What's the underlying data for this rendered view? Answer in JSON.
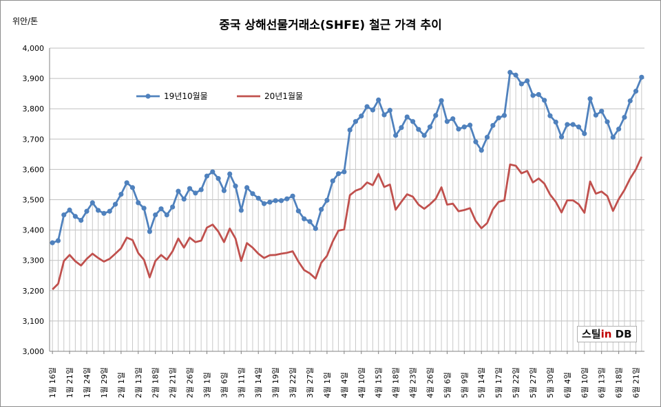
{
  "unit_label": "위안/톤",
  "logo": {
    "main": "스틸",
    "accent": "in",
    "suffix": " DB"
  },
  "colors": {
    "series1": "#4f81bd",
    "series2": "#c0504d",
    "grid": "#bfbfbf",
    "drop": "#c8c8c8"
  },
  "chart_data": {
    "type": "line",
    "title": "중국 상해선물거래소(SHFE) 철근 가격 추이",
    "ylabel": "위안/톤",
    "ylim": [
      3000,
      4000
    ],
    "yticks": [
      3000,
      3100,
      3200,
      3300,
      3400,
      3500,
      3600,
      3700,
      3800,
      3900,
      4000
    ],
    "ytick_labels": [
      "3,000",
      "3,100",
      "3,200",
      "3,300",
      "3,400",
      "3,500",
      "3,600",
      "3,700",
      "3,800",
      "3,900",
      "4,000"
    ],
    "grid": "horizontal",
    "legend": "top-left",
    "x_labels": [
      "1월 16일",
      "1월 21일",
      "1월 24일",
      "1월 29일",
      "2월 1일",
      "2월 13일",
      "2월 18일",
      "2월 21일",
      "2월 26일",
      "3월 1일",
      "3월 6일",
      "3월 11일",
      "3월 14일",
      "3월 19일",
      "3월 22일",
      "3월 27일",
      "4월 1일",
      "4월 4일",
      "4월 10일",
      "4월 15일",
      "4월 18일",
      "4월 23일",
      "4월 26일",
      "5월 6일",
      "5월 9일",
      "5월 14일",
      "5월 17일",
      "5월 22일",
      "5월 27일",
      "5월 30일",
      "6월 4일",
      "6월 10일",
      "6월 13일",
      "6월 18일",
      "6월 21일"
    ],
    "x_label_every": 3,
    "series": [
      {
        "name": "19년10월물",
        "values": [
          3358,
          3365,
          3450,
          3466,
          3445,
          3432,
          3462,
          3490,
          3465,
          3455,
          3462,
          3485,
          3518,
          3556,
          3540,
          3490,
          3472,
          3395,
          3450,
          3470,
          3450,
          3476,
          3528,
          3502,
          3537,
          3522,
          3533,
          3578,
          3592,
          3570,
          3530,
          3585,
          3545,
          3465,
          3540,
          3520,
          3505,
          3487,
          3492,
          3497,
          3497,
          3503,
          3512,
          3463,
          3437,
          3428,
          3405,
          3468,
          3498,
          3562,
          3586,
          3592,
          3730,
          3758,
          3776,
          3807,
          3796,
          3829,
          3780,
          3795,
          3712,
          3738,
          3773,
          3758,
          3732,
          3712,
          3740,
          3778,
          3827,
          3758,
          3767,
          3733,
          3740,
          3746,
          3691,
          3663,
          3706,
          3745,
          3770,
          3778,
          3920,
          3911,
          3882,
          3892,
          3844,
          3847,
          3828,
          3777,
          3756,
          3707,
          3748,
          3748,
          3740,
          3718,
          3833,
          3779,
          3792,
          3757,
          3706,
          3733,
          3772,
          3826,
          3858,
          3904
        ]
      },
      {
        "name": "20년1월물",
        "values": [
          3204,
          3223,
          3298,
          3318,
          3297,
          3283,
          3305,
          3322,
          3308,
          3296,
          3305,
          3322,
          3340,
          3375,
          3367,
          3324,
          3302,
          3244,
          3298,
          3318,
          3302,
          3330,
          3372,
          3342,
          3375,
          3360,
          3365,
          3408,
          3418,
          3395,
          3360,
          3405,
          3372,
          3298,
          3357,
          3342,
          3322,
          3308,
          3317,
          3318,
          3322,
          3325,
          3330,
          3296,
          3268,
          3257,
          3240,
          3292,
          3315,
          3362,
          3398,
          3402,
          3515,
          3530,
          3537,
          3557,
          3548,
          3585,
          3542,
          3550,
          3467,
          3493,
          3518,
          3510,
          3484,
          3470,
          3485,
          3503,
          3541,
          3484,
          3487,
          3462,
          3466,
          3472,
          3430,
          3406,
          3423,
          3468,
          3493,
          3498,
          3616,
          3612,
          3587,
          3595,
          3557,
          3570,
          3553,
          3517,
          3493,
          3458,
          3498,
          3498,
          3485,
          3457,
          3560,
          3520,
          3527,
          3512,
          3463,
          3502,
          3532,
          3570,
          3600,
          3642
        ]
      }
    ]
  }
}
